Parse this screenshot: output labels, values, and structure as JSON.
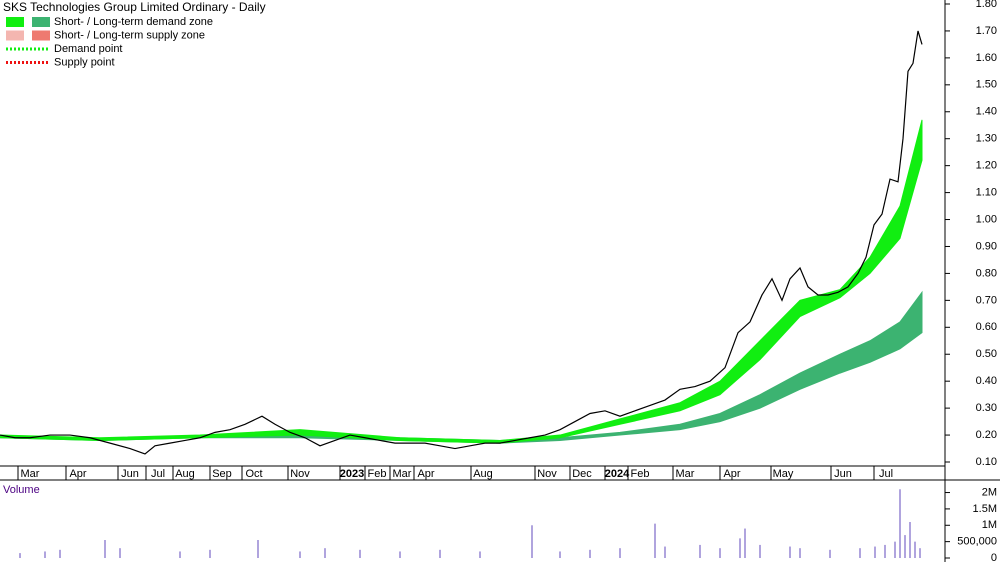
{
  "chart_data": [
    {
      "type": "line",
      "title": "SKS Technologies Group Limited Ordinary - Daily",
      "xlim": [
        0,
        945
      ],
      "ylim": [
        0.1,
        1.8
      ],
      "xticks": [
        {
          "value": 30,
          "label": "Mar"
        },
        {
          "value": 78,
          "label": "Apr"
        },
        {
          "value": 130,
          "label": "Jun"
        },
        {
          "value": 158,
          "label": "Jul"
        },
        {
          "value": 185,
          "label": "Aug"
        },
        {
          "value": 222,
          "label": "Sep"
        },
        {
          "value": 254,
          "label": "Oct"
        },
        {
          "value": 300,
          "label": "Nov"
        },
        {
          "value": 352,
          "label": "2023"
        },
        {
          "value": 377,
          "label": "Feb"
        },
        {
          "value": 402,
          "label": "Mar"
        },
        {
          "value": 426,
          "label": "Apr"
        },
        {
          "value": 483,
          "label": "Aug"
        },
        {
          "value": 547,
          "label": "Nov"
        },
        {
          "value": 582,
          "label": "Dec"
        },
        {
          "value": 617,
          "label": "2024"
        },
        {
          "value": 640,
          "label": "Feb"
        },
        {
          "value": 685,
          "label": "Mar"
        },
        {
          "value": 732,
          "label": "Apr"
        },
        {
          "value": 783,
          "label": "May"
        },
        {
          "value": 843,
          "label": "Jun"
        },
        {
          "value": 886,
          "label": "Jul"
        }
      ],
      "yticks": [
        {
          "value": 0.1,
          "label": "0.10"
        },
        {
          "value": 0.2,
          "label": "0.20"
        },
        {
          "value": 0.3,
          "label": "0.30"
        },
        {
          "value": 0.4,
          "label": "0.40"
        },
        {
          "value": 0.5,
          "label": "0.50"
        },
        {
          "value": 0.6,
          "label": "0.60"
        },
        {
          "value": 0.7,
          "label": "0.70"
        },
        {
          "value": 0.8,
          "label": "0.80"
        },
        {
          "value": 0.9,
          "label": "0.90"
        },
        {
          "value": 1.0,
          "label": "1.00"
        },
        {
          "value": 1.1,
          "label": "1.10"
        },
        {
          "value": 1.2,
          "label": "1.20"
        },
        {
          "value": 1.3,
          "label": "1.30"
        },
        {
          "value": 1.4,
          "label": "1.40"
        },
        {
          "value": 1.5,
          "label": "1.50"
        },
        {
          "value": 1.6,
          "label": "1.60"
        },
        {
          "value": 1.7,
          "label": "1.70"
        },
        {
          "value": 1.8,
          "label": "1.80"
        }
      ],
      "legend": [
        {
          "label": "Short- / Long-term demand zone",
          "colors": [
            "#11ee11",
            "#3cb371"
          ]
        },
        {
          "label": "Short- / Long-term supply zone",
          "colors": [
            "#f4b6b0",
            "#ee7a70"
          ]
        },
        {
          "label": "Demand point",
          "colors": [
            "#11ee11"
          ],
          "dotted": true
        },
        {
          "label": "Supply point",
          "colors": [
            "#ee1111"
          ],
          "dotted": true
        }
      ],
      "bands": [
        {
          "color": "#3cb371",
          "x": [
            0,
            100,
            200,
            300,
            400,
            500,
            560,
            620,
            680,
            720,
            760,
            800,
            840,
            870,
            900,
            922
          ],
          "upper": [
            0.19,
            0.18,
            0.19,
            0.2,
            0.19,
            0.18,
            0.19,
            0.21,
            0.24,
            0.28,
            0.35,
            0.43,
            0.5,
            0.55,
            0.62,
            0.73
          ],
          "lower": [
            0.19,
            0.18,
            0.19,
            0.19,
            0.18,
            0.17,
            0.18,
            0.2,
            0.22,
            0.25,
            0.3,
            0.37,
            0.43,
            0.47,
            0.52,
            0.58
          ]
        },
        {
          "color": "#11ee11",
          "x": [
            0,
            100,
            200,
            300,
            400,
            500,
            560,
            620,
            680,
            720,
            760,
            800,
            840,
            870,
            900,
            922
          ],
          "upper": [
            0.2,
            0.19,
            0.2,
            0.22,
            0.19,
            0.18,
            0.2,
            0.26,
            0.32,
            0.4,
            0.55,
            0.7,
            0.74,
            0.86,
            1.05,
            1.37
          ],
          "lower": [
            0.19,
            0.18,
            0.19,
            0.2,
            0.18,
            0.17,
            0.19,
            0.24,
            0.29,
            0.35,
            0.48,
            0.64,
            0.71,
            0.8,
            0.93,
            1.22
          ]
        }
      ],
      "series": [
        {
          "color": "#000000",
          "x": [
            0,
            15,
            30,
            50,
            70,
            90,
            110,
            130,
            145,
            155,
            170,
            185,
            200,
            215,
            230,
            245,
            262,
            275,
            290,
            305,
            320,
            335,
            350,
            365,
            380,
            395,
            410,
            425,
            440,
            455,
            470,
            485,
            500,
            515,
            530,
            545,
            560,
            575,
            590,
            605,
            620,
            635,
            650,
            665,
            680,
            695,
            710,
            725,
            738,
            750,
            762,
            772,
            782,
            790,
            800,
            808,
            818,
            828,
            838,
            848,
            858,
            866,
            874,
            882,
            890,
            898,
            903,
            908,
            913,
            918,
            922
          ],
          "values": [
            0.2,
            0.19,
            0.19,
            0.2,
            0.2,
            0.19,
            0.17,
            0.15,
            0.13,
            0.16,
            0.17,
            0.18,
            0.19,
            0.21,
            0.22,
            0.24,
            0.27,
            0.24,
            0.21,
            0.19,
            0.16,
            0.18,
            0.2,
            0.19,
            0.18,
            0.17,
            0.17,
            0.17,
            0.16,
            0.15,
            0.16,
            0.17,
            0.17,
            0.18,
            0.19,
            0.2,
            0.22,
            0.25,
            0.28,
            0.29,
            0.27,
            0.29,
            0.31,
            0.33,
            0.37,
            0.38,
            0.4,
            0.45,
            0.58,
            0.62,
            0.72,
            0.78,
            0.7,
            0.78,
            0.82,
            0.75,
            0.72,
            0.72,
            0.73,
            0.75,
            0.8,
            0.86,
            0.98,
            1.02,
            1.15,
            1.14,
            1.3,
            1.55,
            1.58,
            1.7,
            1.65
          ]
        }
      ]
    },
    {
      "type": "bar",
      "title": "Volume",
      "color": "#7b68c8",
      "xlim": [
        0,
        945
      ],
      "ylim": [
        0,
        2200000
      ],
      "yticks": [
        0,
        {
          "value": 500000,
          "label": "500,000"
        },
        {
          "value": 1000000,
          "label": "1M"
        },
        {
          "value": 1500000,
          "label": "1.5M"
        },
        {
          "value": 2000000,
          "label": "2M"
        }
      ],
      "x": [
        20,
        45,
        60,
        105,
        120,
        180,
        210,
        258,
        300,
        325,
        360,
        400,
        440,
        480,
        532,
        560,
        590,
        620,
        655,
        665,
        700,
        720,
        740,
        745,
        760,
        790,
        800,
        830,
        860,
        875,
        885,
        895,
        900,
        905,
        910,
        915,
        920
      ],
      "values": [
        150000,
        200000,
        250000,
        550000,
        300000,
        200000,
        250000,
        550000,
        200000,
        300000,
        250000,
        200000,
        250000,
        200000,
        1000000,
        200000,
        250000,
        300000,
        1050000,
        350000,
        400000,
        300000,
        600000,
        900000,
        400000,
        350000,
        300000,
        250000,
        300000,
        350000,
        400000,
        500000,
        2100000,
        700000,
        1100000,
        500000,
        300000
      ]
    }
  ]
}
